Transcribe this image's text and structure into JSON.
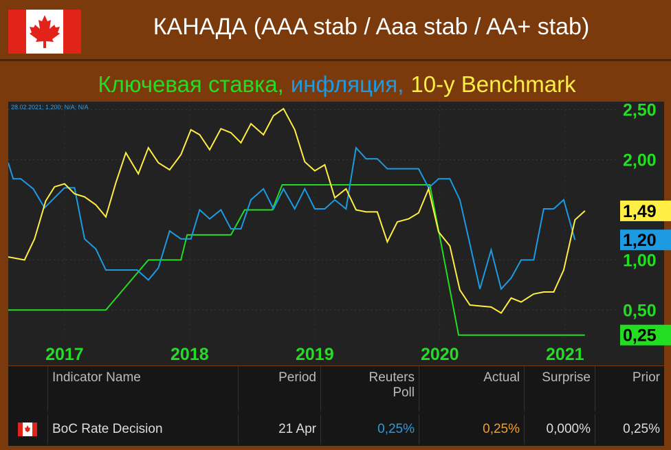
{
  "header": {
    "title": "КАНАДА (AAA stab / Aaa stab / AA+ stab)"
  },
  "chart_data": {
    "type": "line",
    "annotation": "28.02.2021; 1,200; N/A; N/A",
    "xlim": [
      2016.55,
      2021.43
    ],
    "xticks": [
      2017,
      2018,
      2019,
      2020,
      2021
    ],
    "ylim": [
      0.2,
      2.58
    ],
    "yticks": [
      {
        "value": 2.5,
        "label": "2,50"
      },
      {
        "value": 2.0,
        "label": "2,00"
      },
      {
        "value": 1.0,
        "label": "1,00"
      },
      {
        "value": 0.5,
        "label": "0,50"
      }
    ],
    "grid": true,
    "series": [
      {
        "name": "Ключевая ставка,",
        "color": "#22dd22",
        "end_label": "0,25",
        "x": [
          2016.55,
          2017.33,
          2017.67,
          2017.93,
          2017.98,
          2018.33,
          2018.44,
          2018.66,
          2018.74,
          2019.92,
          2020.15,
          2021.16
        ],
        "values": [
          0.5,
          0.5,
          1.0,
          1.0,
          1.25,
          1.25,
          1.5,
          1.5,
          1.75,
          1.75,
          0.25,
          0.25
        ]
      },
      {
        "name": "инфляция,",
        "color": "#1c9be2",
        "end_label": "1,20",
        "x": [
          2016.55,
          2016.59,
          2016.65,
          2016.75,
          2016.84,
          2016.92,
          2017.0,
          2017.08,
          2017.16,
          2017.25,
          2017.33,
          2017.41,
          2017.49,
          2017.58,
          2017.67,
          2017.75,
          2017.84,
          2017.93,
          2018.01,
          2018.08,
          2018.16,
          2018.25,
          2018.33,
          2018.41,
          2018.49,
          2018.59,
          2018.67,
          2018.75,
          2018.84,
          2018.92,
          2019.0,
          2019.08,
          2019.16,
          2019.25,
          2019.33,
          2019.41,
          2019.5,
          2019.58,
          2019.66,
          2019.75,
          2019.83,
          2019.91,
          2019.99,
          2020.08,
          2020.16,
          2020.24,
          2020.32,
          2020.41,
          2020.49,
          2020.57,
          2020.65,
          2020.75,
          2020.83,
          2020.91,
          2020.99,
          2021.08
        ],
        "values": [
          1.97,
          1.81,
          1.81,
          1.71,
          1.52,
          1.62,
          1.72,
          1.72,
          1.21,
          1.11,
          0.9,
          0.9,
          0.9,
          0.9,
          0.8,
          0.92,
          1.29,
          1.21,
          1.21,
          1.5,
          1.41,
          1.5,
          1.31,
          1.31,
          1.6,
          1.71,
          1.51,
          1.71,
          1.51,
          1.71,
          1.51,
          1.51,
          1.6,
          1.51,
          2.12,
          2.01,
          2.01,
          1.91,
          1.91,
          1.91,
          1.91,
          1.72,
          1.81,
          1.81,
          1.6,
          1.16,
          0.71,
          1.1,
          0.71,
          0.82,
          1.0,
          1.0,
          1.51,
          1.51,
          1.6,
          1.2
        ]
      },
      {
        "name": "10-у Benchmark",
        "color": "#ffee44",
        "end_label": "1,49",
        "x": [
          2016.55,
          2016.68,
          2016.76,
          2016.85,
          2016.92,
          2017.0,
          2017.08,
          2017.16,
          2017.25,
          2017.33,
          2017.41,
          2017.49,
          2017.59,
          2017.67,
          2017.75,
          2017.84,
          2017.93,
          2018.01,
          2018.08,
          2018.16,
          2018.25,
          2018.33,
          2018.41,
          2018.49,
          2018.59,
          2018.67,
          2018.75,
          2018.84,
          2018.92,
          2019.0,
          2019.08,
          2019.16,
          2019.25,
          2019.33,
          2019.41,
          2019.5,
          2019.58,
          2019.66,
          2019.75,
          2019.83,
          2019.91,
          2019.99,
          2020.08,
          2020.16,
          2020.24,
          2020.32,
          2020.41,
          2020.49,
          2020.57,
          2020.65,
          2020.75,
          2020.83,
          2020.91,
          2020.99,
          2021.08,
          2021.16
        ],
        "values": [
          1.03,
          1.0,
          1.21,
          1.59,
          1.73,
          1.76,
          1.66,
          1.63,
          1.55,
          1.43,
          1.77,
          2.07,
          1.86,
          2.12,
          1.97,
          1.9,
          2.05,
          2.3,
          2.25,
          2.1,
          2.31,
          2.27,
          2.17,
          2.36,
          2.25,
          2.44,
          2.51,
          2.3,
          1.98,
          1.89,
          1.95,
          1.62,
          1.71,
          1.5,
          1.48,
          1.48,
          1.18,
          1.38,
          1.41,
          1.47,
          1.71,
          1.28,
          1.14,
          0.7,
          0.55,
          0.54,
          0.53,
          0.47,
          0.62,
          0.58,
          0.66,
          0.68,
          0.68,
          0.9,
          1.4,
          1.49
        ]
      }
    ]
  },
  "table": {
    "columns": [
      "Indicator Name",
      "Period",
      "Reuters Poll",
      "Actual",
      "Surprise",
      "Prior"
    ],
    "rows": [
      [
        "BoC Rate Decision",
        "21 Apr",
        "0,25%",
        "0,25%",
        "0,000%",
        "0,25%"
      ]
    ]
  }
}
